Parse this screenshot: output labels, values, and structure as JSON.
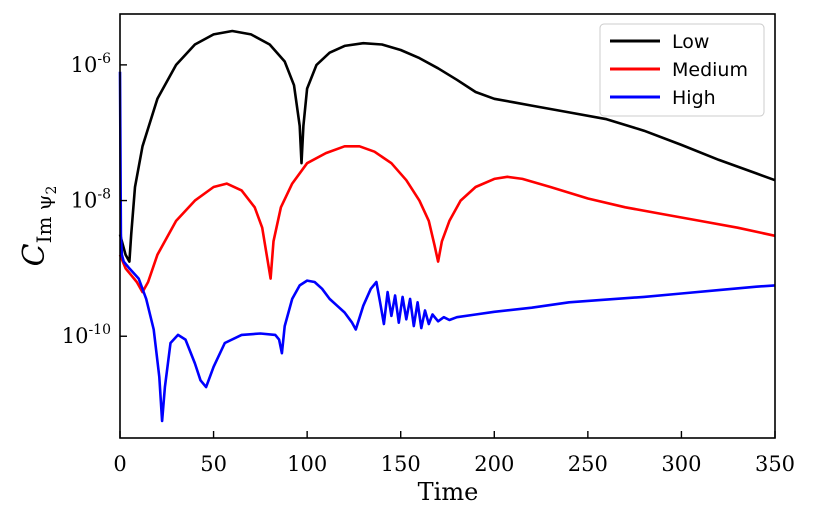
{
  "chart_data": {
    "type": "line",
    "title": "",
    "xlabel": "Time",
    "ylabel_main": "C",
    "ylabel_sub": "Im ψ",
    "ylabel_subsub": "2",
    "xlim": [
      0,
      350
    ],
    "ylim_log10": [
      -11.5,
      -5.25
    ],
    "yscale": "log",
    "grid": false,
    "legend_position": "top-right",
    "x_ticks": [
      0,
      50,
      100,
      150,
      200,
      250,
      300,
      350
    ],
    "x_tick_labels": [
      "0",
      "50",
      "100",
      "150",
      "200",
      "250",
      "300",
      "350"
    ],
    "y_ticks": [
      -10,
      -8,
      -6
    ],
    "y_tick_labels": [
      {
        "base": "10",
        "exp": "-10"
      },
      {
        "base": "10",
        "exp": "-8"
      },
      {
        "base": "10",
        "exp": "-6"
      }
    ],
    "series": [
      {
        "name": "Low",
        "color": "#000000",
        "x": [
          0,
          1,
          3,
          5,
          6,
          8,
          12,
          20,
          30,
          40,
          50,
          60,
          70,
          80,
          88,
          93,
          96,
          97,
          98,
          100,
          105,
          112,
          120,
          130,
          140,
          150,
          160,
          170,
          180,
          190,
          200,
          210,
          220,
          240,
          260,
          280,
          300,
          320,
          340,
          350
        ],
        "log10y": [
          -8.5,
          -8.6,
          -8.8,
          -8.9,
          -8.5,
          -7.8,
          -7.2,
          -6.5,
          -6.0,
          -5.7,
          -5.55,
          -5.5,
          -5.55,
          -5.7,
          -5.95,
          -6.3,
          -6.9,
          -7.45,
          -6.9,
          -6.35,
          -6.0,
          -5.82,
          -5.72,
          -5.68,
          -5.7,
          -5.78,
          -5.9,
          -6.05,
          -6.22,
          -6.4,
          -6.5,
          -6.55,
          -6.6,
          -6.7,
          -6.8,
          -6.97,
          -7.18,
          -7.4,
          -7.6,
          -7.7
        ]
      },
      {
        "name": "Medium",
        "color": "#ff0000",
        "x": [
          0,
          3,
          6,
          9,
          12,
          15,
          20,
          30,
          40,
          50,
          57,
          65,
          72,
          76,
          79,
          80.5,
          82,
          86,
          92,
          100,
          110,
          120,
          128,
          136,
          145,
          153,
          160,
          165,
          168,
          170,
          172,
          176,
          182,
          190,
          200,
          207,
          215,
          230,
          250,
          270,
          290,
          310,
          330,
          350
        ],
        "log10y": [
          -8.8,
          -9.0,
          -9.1,
          -9.2,
          -9.35,
          -9.2,
          -8.8,
          -8.3,
          -8.0,
          -7.8,
          -7.75,
          -7.85,
          -8.1,
          -8.4,
          -8.9,
          -9.15,
          -8.6,
          -8.1,
          -7.75,
          -7.45,
          -7.3,
          -7.2,
          -7.2,
          -7.28,
          -7.45,
          -7.7,
          -8.0,
          -8.3,
          -8.65,
          -8.9,
          -8.6,
          -8.3,
          -8.0,
          -7.8,
          -7.68,
          -7.65,
          -7.68,
          -7.8,
          -7.97,
          -8.1,
          -8.2,
          -8.3,
          -8.4,
          -8.52
        ]
      },
      {
        "name": "High",
        "color": "#0000ff",
        "x": [
          0,
          0.5,
          1,
          2,
          5,
          10,
          14,
          18,
          21,
          22.5,
          24,
          27,
          31,
          35,
          40,
          43,
          46,
          50,
          56,
          65,
          75,
          83,
          85,
          86.5,
          88,
          92,
          96,
          100,
          104,
          108,
          112,
          116,
          120,
          124,
          126,
          130,
          134,
          137,
          139,
          141,
          143,
          145,
          147,
          149,
          151,
          153,
          155,
          157,
          159,
          161,
          163,
          165,
          167,
          170,
          173,
          176,
          180,
          190,
          200,
          220,
          240,
          260,
          280,
          300,
          320,
          340,
          350
        ],
        "log10y": [
          -6.1,
          -8.5,
          -8.8,
          -8.9,
          -9.0,
          -9.15,
          -9.45,
          -9.9,
          -10.6,
          -11.25,
          -10.75,
          -10.1,
          -9.98,
          -10.05,
          -10.4,
          -10.65,
          -10.75,
          -10.45,
          -10.1,
          -9.98,
          -9.96,
          -9.98,
          -10.05,
          -10.25,
          -9.85,
          -9.45,
          -9.25,
          -9.18,
          -9.2,
          -9.3,
          -9.45,
          -9.55,
          -9.65,
          -9.8,
          -9.9,
          -9.55,
          -9.3,
          -9.2,
          -9.5,
          -9.82,
          -9.35,
          -9.7,
          -9.4,
          -9.8,
          -9.42,
          -9.75,
          -9.45,
          -9.85,
          -9.5,
          -9.88,
          -9.62,
          -9.82,
          -9.68,
          -9.78,
          -9.72,
          -9.76,
          -9.72,
          -9.68,
          -9.64,
          -9.58,
          -9.5,
          -9.46,
          -9.42,
          -9.37,
          -9.32,
          -9.27,
          -9.25
        ]
      }
    ]
  }
}
